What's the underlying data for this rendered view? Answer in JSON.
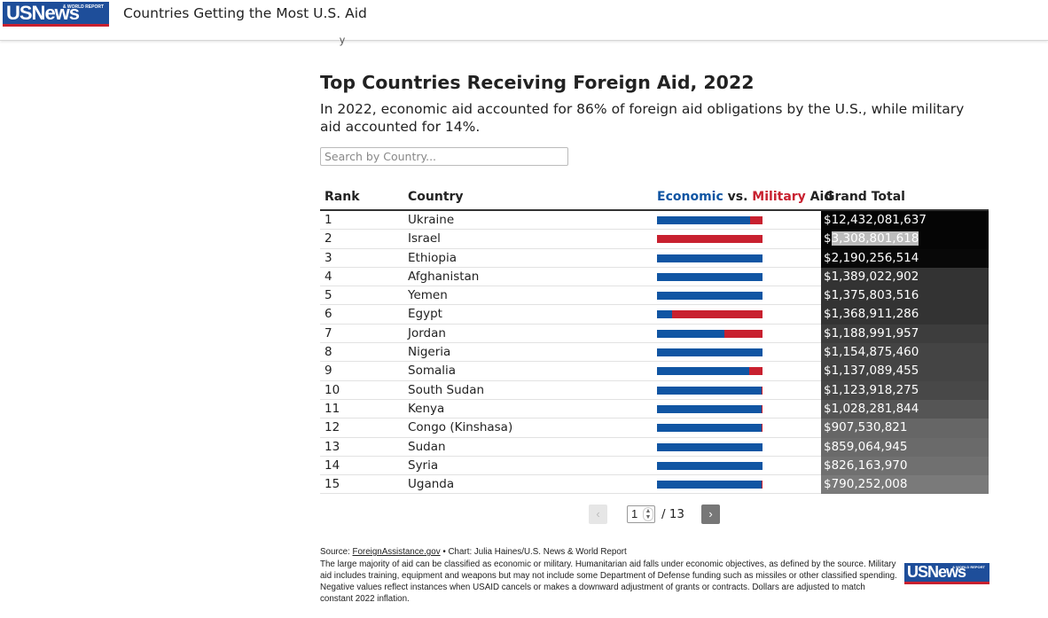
{
  "header": {
    "logo_text": "USNews",
    "logo_tagline": "& WORLD REPORT",
    "page_title": "Countries Getting the Most U.S. Aid",
    "peek_text": "y"
  },
  "heading": "Top Countries Receiving Foreign Aid, 2022",
  "subhead": "In 2022, economic aid accounted for 86% of foreign aid obligations by the U.S., while military aid accounted for 14%.",
  "search": {
    "placeholder": "Search by Country..."
  },
  "table": {
    "headers": {
      "rank": "Rank",
      "country": "Country",
      "aid_economic": "Economic",
      "aid_vs": " vs. ",
      "aid_military": "Military",
      "aid_suffix": " Aid",
      "total": "Grand Total"
    },
    "colors": {
      "economic": "#1055a3",
      "military": "#c8202f"
    },
    "rows": [
      {
        "rank": "1",
        "country": "Ukraine",
        "economic_share": 0.88,
        "total": "$12,432,081,637",
        "shade": "#050505"
      },
      {
        "rank": "2",
        "country": "Israel",
        "economic_share": 0.0,
        "total_prefix": "$",
        "total_highlight": "3,308,801,618",
        "total": "$3,308,801,618",
        "shade": "#050505"
      },
      {
        "rank": "3",
        "country": "Ethiopia",
        "economic_share": 1.0,
        "total": "$2,190,256,514",
        "shade": "#080808"
      },
      {
        "rank": "4",
        "country": "Afghanistan",
        "economic_share": 1.0,
        "total": "$1,389,022,902",
        "shade": "#333333"
      },
      {
        "rank": "5",
        "country": "Yemen",
        "economic_share": 1.0,
        "total": "$1,375,803,516",
        "shade": "#333333"
      },
      {
        "rank": "6",
        "country": "Egypt",
        "economic_share": 0.14,
        "total": "$1,368,911,286",
        "shade": "#333333"
      },
      {
        "rank": "7",
        "country": "Jordan",
        "economic_share": 0.64,
        "total": "$1,188,991,957",
        "shade": "#3d3d3d"
      },
      {
        "rank": "8",
        "country": "Nigeria",
        "economic_share": 1.0,
        "total": "$1,154,875,460",
        "shade": "#444444"
      },
      {
        "rank": "9",
        "country": "Somalia",
        "economic_share": 0.87,
        "total": "$1,137,089,455",
        "shade": "#444444"
      },
      {
        "rank": "10",
        "country": "South Sudan",
        "economic_share": 0.99,
        "total": "$1,123,918,275",
        "shade": "#484848"
      },
      {
        "rank": "11",
        "country": "Kenya",
        "economic_share": 0.99,
        "total": "$1,028,281,844",
        "shade": "#555555"
      },
      {
        "rank": "12",
        "country": "Congo (Kinshasa)",
        "economic_share": 0.99,
        "total": "$907,530,821",
        "shade": "#666666"
      },
      {
        "rank": "13",
        "country": "Sudan",
        "economic_share": 1.0,
        "total": "$859,064,945",
        "shade": "#6a6a6a"
      },
      {
        "rank": "14",
        "country": "Syria",
        "economic_share": 1.0,
        "total": "$826,163,970",
        "shade": "#707070"
      },
      {
        "rank": "15",
        "country": "Uganda",
        "economic_share": 0.99,
        "total": "$790,252,008",
        "shade": "#7a7a7a"
      }
    ]
  },
  "pagination": {
    "prev_label": "‹",
    "current_page": "1",
    "of_text": "/ 13",
    "next_label": "›"
  },
  "footer": {
    "source_prefix": "Source: ",
    "source_link": "ForeignAssistance.gov",
    "source_suffix": " • Chart: Julia Haines/U.S. News & World Report",
    "note": "The large majority of aid can be classified as economic or military. Humanitarian aid falls under economic objectives, as defined by the source. Military aid includes training, equipment and weapons but may not include some Department of Defense funding such as missiles or other classified spending. Negative values reflect instances when USAID cancels or makes a downward adjustment of grants or contracts. Dollars are adjusted to match constant 2022 inflation.",
    "logo_text": "USNews",
    "logo_tagline": "& WORLD REPORT"
  }
}
